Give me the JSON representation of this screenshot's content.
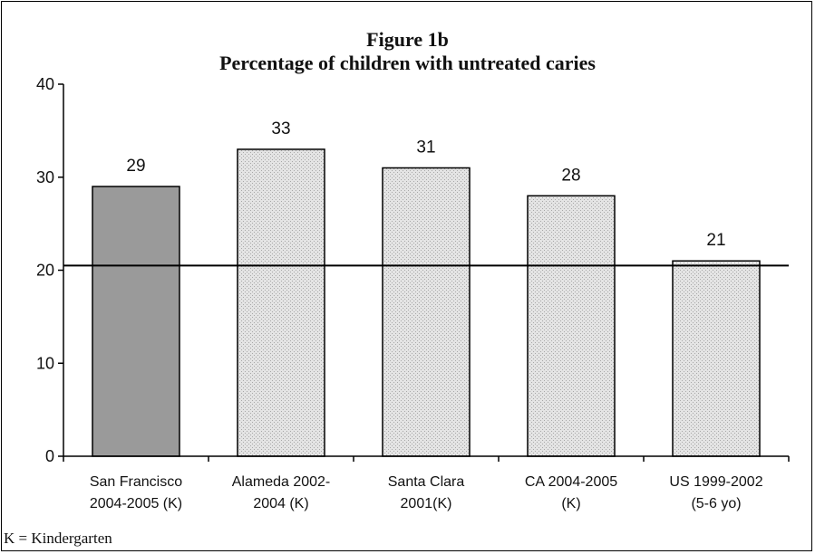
{
  "footnote": "K = Kindergarten",
  "chart_data": {
    "type": "bar",
    "title": "Figure 1b",
    "subtitle": "Percentage of children with untreated caries",
    "xlabel": "",
    "ylabel": "",
    "ylim": [
      0,
      40
    ],
    "yticks": [
      0,
      10,
      20,
      30,
      40
    ],
    "grid": false,
    "legend": "none",
    "categories": [
      [
        "San Francisco",
        "2004-2005 (K)"
      ],
      [
        "Alameda 2002-",
        "2004 (K)"
      ],
      [
        "Santa Clara",
        "2001(K)"
      ],
      [
        "CA 2004-2005",
        "(K)"
      ],
      [
        "US 1999-2002",
        "(5-6 yo)"
      ]
    ],
    "values": [
      29,
      33,
      31,
      28,
      21
    ],
    "data_labels": [
      "29",
      "33",
      "31",
      "28",
      "21"
    ],
    "reference_line": 20.5,
    "colors": {
      "highlight_bar": "#9a9a9a",
      "other_bar": "#e0e0e0",
      "outline": "#000000"
    },
    "highlight_index": 0
  }
}
